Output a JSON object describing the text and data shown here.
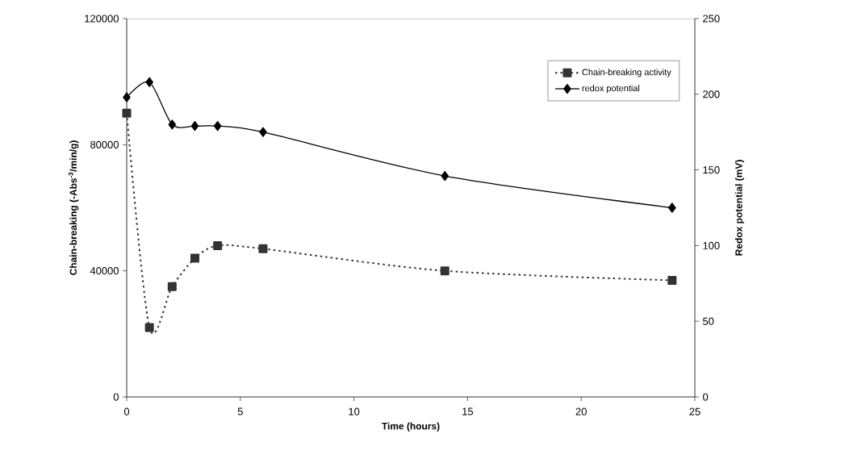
{
  "chart_data": {
    "type": "line",
    "xlabel": "Time (hours)",
    "ylabel": "Chain-breaking (-Abs$^{-3}$/min/g)",
    "y2label": "Redox potential (mV)",
    "x": [
      0,
      1,
      2,
      3,
      4,
      6,
      14,
      24
    ],
    "series": [
      {
        "name": "Chain-breaking activity",
        "color": "#333333",
        "marker": "square",
        "line_style": "dotted",
        "values": [
          90000,
          22000,
          35000,
          44000,
          48000,
          47000,
          40000,
          37000
        ]
      },
      {
        "name": "redox potential",
        "color": "#000000",
        "marker": "diamond",
        "line_style": "solid",
        "axis": "y2",
        "values": [
          198,
          208,
          180,
          179,
          179,
          175,
          146,
          125
        ]
      }
    ],
    "xlim": [
      0,
      25
    ],
    "xticks": [
      0,
      5,
      10,
      15,
      20,
      25
    ],
    "ylim": [
      0,
      120000
    ],
    "yticks": [
      0,
      40000,
      80000,
      120000
    ],
    "y2lim": [
      0,
      250
    ],
    "y2ticks": [
      0,
      50,
      100,
      150,
      200,
      250
    ],
    "grid": false,
    "legend": "top right"
  }
}
